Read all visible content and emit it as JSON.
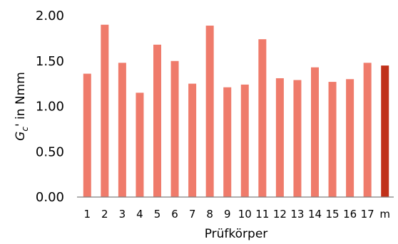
{
  "chart_data": {
    "type": "bar",
    "title": "",
    "xlabel": "Prüfkörper",
    "ylabel": {
      "main": "G",
      "subscript": "c",
      "suffix": "' in Nmm"
    },
    "ylim": [
      0,
      2
    ],
    "yticks": [
      "0.00",
      "0.50",
      "1.00",
      "1.50",
      "2.00"
    ],
    "ytick_values": [
      0,
      0.5,
      1.0,
      1.5,
      2.0
    ],
    "grid": false,
    "categories": [
      "1",
      "2",
      "3",
      "4",
      "5",
      "6",
      "7",
      "8",
      "9",
      "10",
      "11",
      "12",
      "13",
      "14",
      "15",
      "16",
      "17",
      "m"
    ],
    "values": [
      1.36,
      1.9,
      1.48,
      1.15,
      1.68,
      1.5,
      1.25,
      1.89,
      1.21,
      1.24,
      1.74,
      1.31,
      1.29,
      1.43,
      1.27,
      1.3,
      1.48,
      1.45
    ],
    "colors": {
      "bar": "#ef7b6b",
      "mean_bar": "#c0311a",
      "axis": "#7f7f7f",
      "text": "#000000"
    },
    "highlighted_category": "m"
  }
}
